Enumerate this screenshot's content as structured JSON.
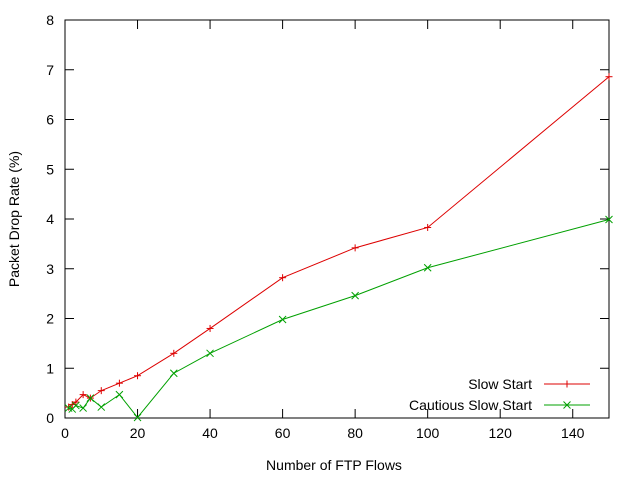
{
  "chart_data": {
    "type": "line",
    "title": "",
    "xlabel": "Number of FTP Flows",
    "ylabel": "Packet Drop Rate (%)",
    "xlim": [
      0,
      150
    ],
    "ylim": [
      0,
      8
    ],
    "xticks": [
      0,
      20,
      40,
      60,
      80,
      100,
      120,
      140
    ],
    "yticks": [
      0,
      1,
      2,
      3,
      4,
      5,
      6,
      7,
      8
    ],
    "grid": false,
    "legend_position": "bottom-right",
    "series": [
      {
        "name": "Slow Start",
        "color": "#dd0000",
        "marker": "plus",
        "x": [
          1,
          2,
          3,
          5,
          7,
          10,
          15,
          20,
          30,
          40,
          60,
          80,
          100,
          150
        ],
        "y": [
          0.22,
          0.27,
          0.32,
          0.47,
          0.4,
          0.55,
          0.7,
          0.85,
          1.3,
          1.8,
          2.82,
          3.42,
          3.83,
          6.86
        ]
      },
      {
        "name": "Cautious Slow Start",
        "color": "#00a000",
        "marker": "x",
        "x": [
          1,
          2,
          3,
          5,
          7,
          10,
          15,
          20,
          30,
          40,
          60,
          80,
          100,
          150
        ],
        "y": [
          0.2,
          0.18,
          0.25,
          0.2,
          0.4,
          0.22,
          0.47,
          0.01,
          0.9,
          1.3,
          1.98,
          2.46,
          3.02,
          3.99
        ]
      }
    ]
  }
}
